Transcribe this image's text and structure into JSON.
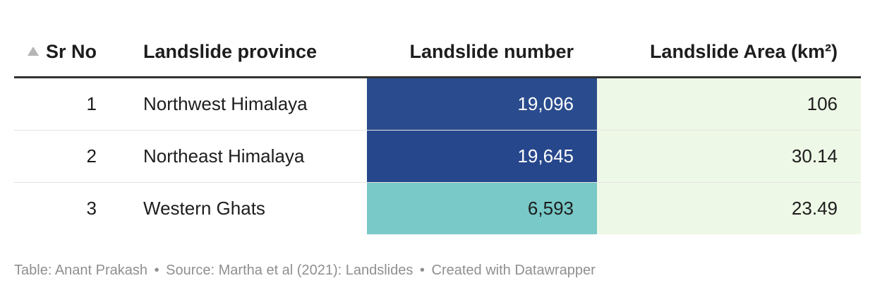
{
  "table": {
    "columns": {
      "sr_no": "Sr No",
      "province": "Landslide province",
      "number": "Landslide number",
      "area": "Landslide Area (km²)"
    },
    "sort_icon": "sort-ascending-icon",
    "rows": [
      {
        "sr_no": "1",
        "province": "Northwest Himalaya",
        "number": "19,096",
        "area": "106"
      },
      {
        "sr_no": "2",
        "province": "Northeast Himalaya",
        "number": "19,645",
        "area": "30.14"
      },
      {
        "sr_no": "3",
        "province": "Western Ghats",
        "number": "6,593",
        "area": "23.49"
      }
    ]
  },
  "colors": {
    "number_scale_low": "#78c9c7",
    "number_scale_high": "#27478c",
    "area_cell_bg": "#eef8e6",
    "number_text_light": "#ffffff",
    "number_text_dark": "#1d1d1d"
  },
  "footer": {
    "table_credit": "Table: Anant Prakash",
    "source": "Source: Martha et al (2021): Landslides",
    "created_with": "Created with Datawrapper",
    "separator": "•"
  },
  "chart_data": {
    "type": "table",
    "columns": [
      "Sr No",
      "Landslide province",
      "Landslide number",
      "Landslide Area (km²)"
    ],
    "rows": [
      [
        1,
        "Northwest Himalaya",
        19096,
        106
      ],
      [
        2,
        "Northeast Himalaya",
        19645,
        30.14
      ],
      [
        3,
        "Western Ghats",
        6593,
        23.49
      ]
    ],
    "sorted_by": "Sr No",
    "sort_order": "ascending",
    "heatmap_column": "Landslide number"
  }
}
